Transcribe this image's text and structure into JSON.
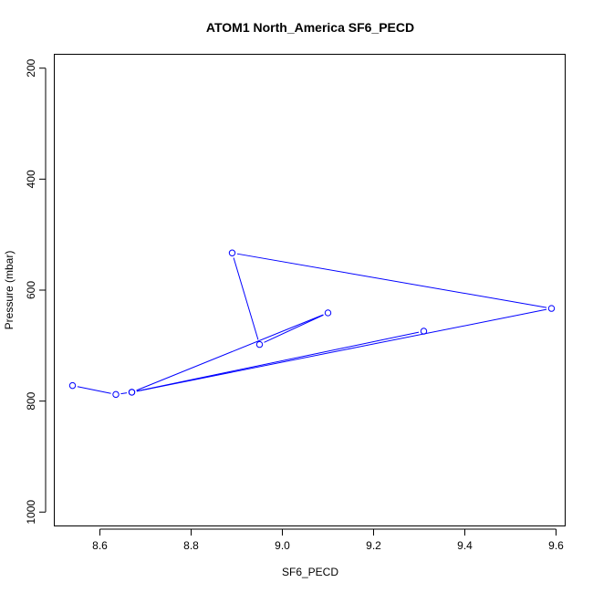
{
  "chart_data": {
    "type": "line",
    "title": "ATOM1 North_America SF6_PECD",
    "xlabel": "SF6_PECD",
    "ylabel": "Pressure (mbar)",
    "xlim": [
      8.5,
      9.62
    ],
    "ylim": [
      1025,
      175
    ],
    "y_reversed": true,
    "x_ticks": [
      8.6,
      8.8,
      9.0,
      9.2,
      9.4,
      9.6
    ],
    "x_tick_labels": [
      "8.6",
      "8.8",
      "9.0",
      "9.2",
      "9.4",
      "9.6"
    ],
    "y_ticks": [
      200,
      400,
      600,
      800,
      1000
    ],
    "y_tick_labels": [
      "200",
      "400",
      "600",
      "800",
      "1000"
    ],
    "grid": false,
    "series": [
      {
        "color": "#0000ff",
        "marker": "open-circle",
        "points": [
          {
            "x": 8.54,
            "y": 772
          },
          {
            "x": 8.635,
            "y": 788
          },
          {
            "x": 8.67,
            "y": 784
          },
          {
            "x": 9.1,
            "y": 641
          },
          {
            "x": 8.95,
            "y": 698
          },
          {
            "x": 8.89,
            "y": 533
          },
          {
            "x": 9.59,
            "y": 633
          },
          {
            "x": 8.67,
            "y": 784
          },
          {
            "x": 9.31,
            "y": 674
          }
        ]
      }
    ]
  }
}
